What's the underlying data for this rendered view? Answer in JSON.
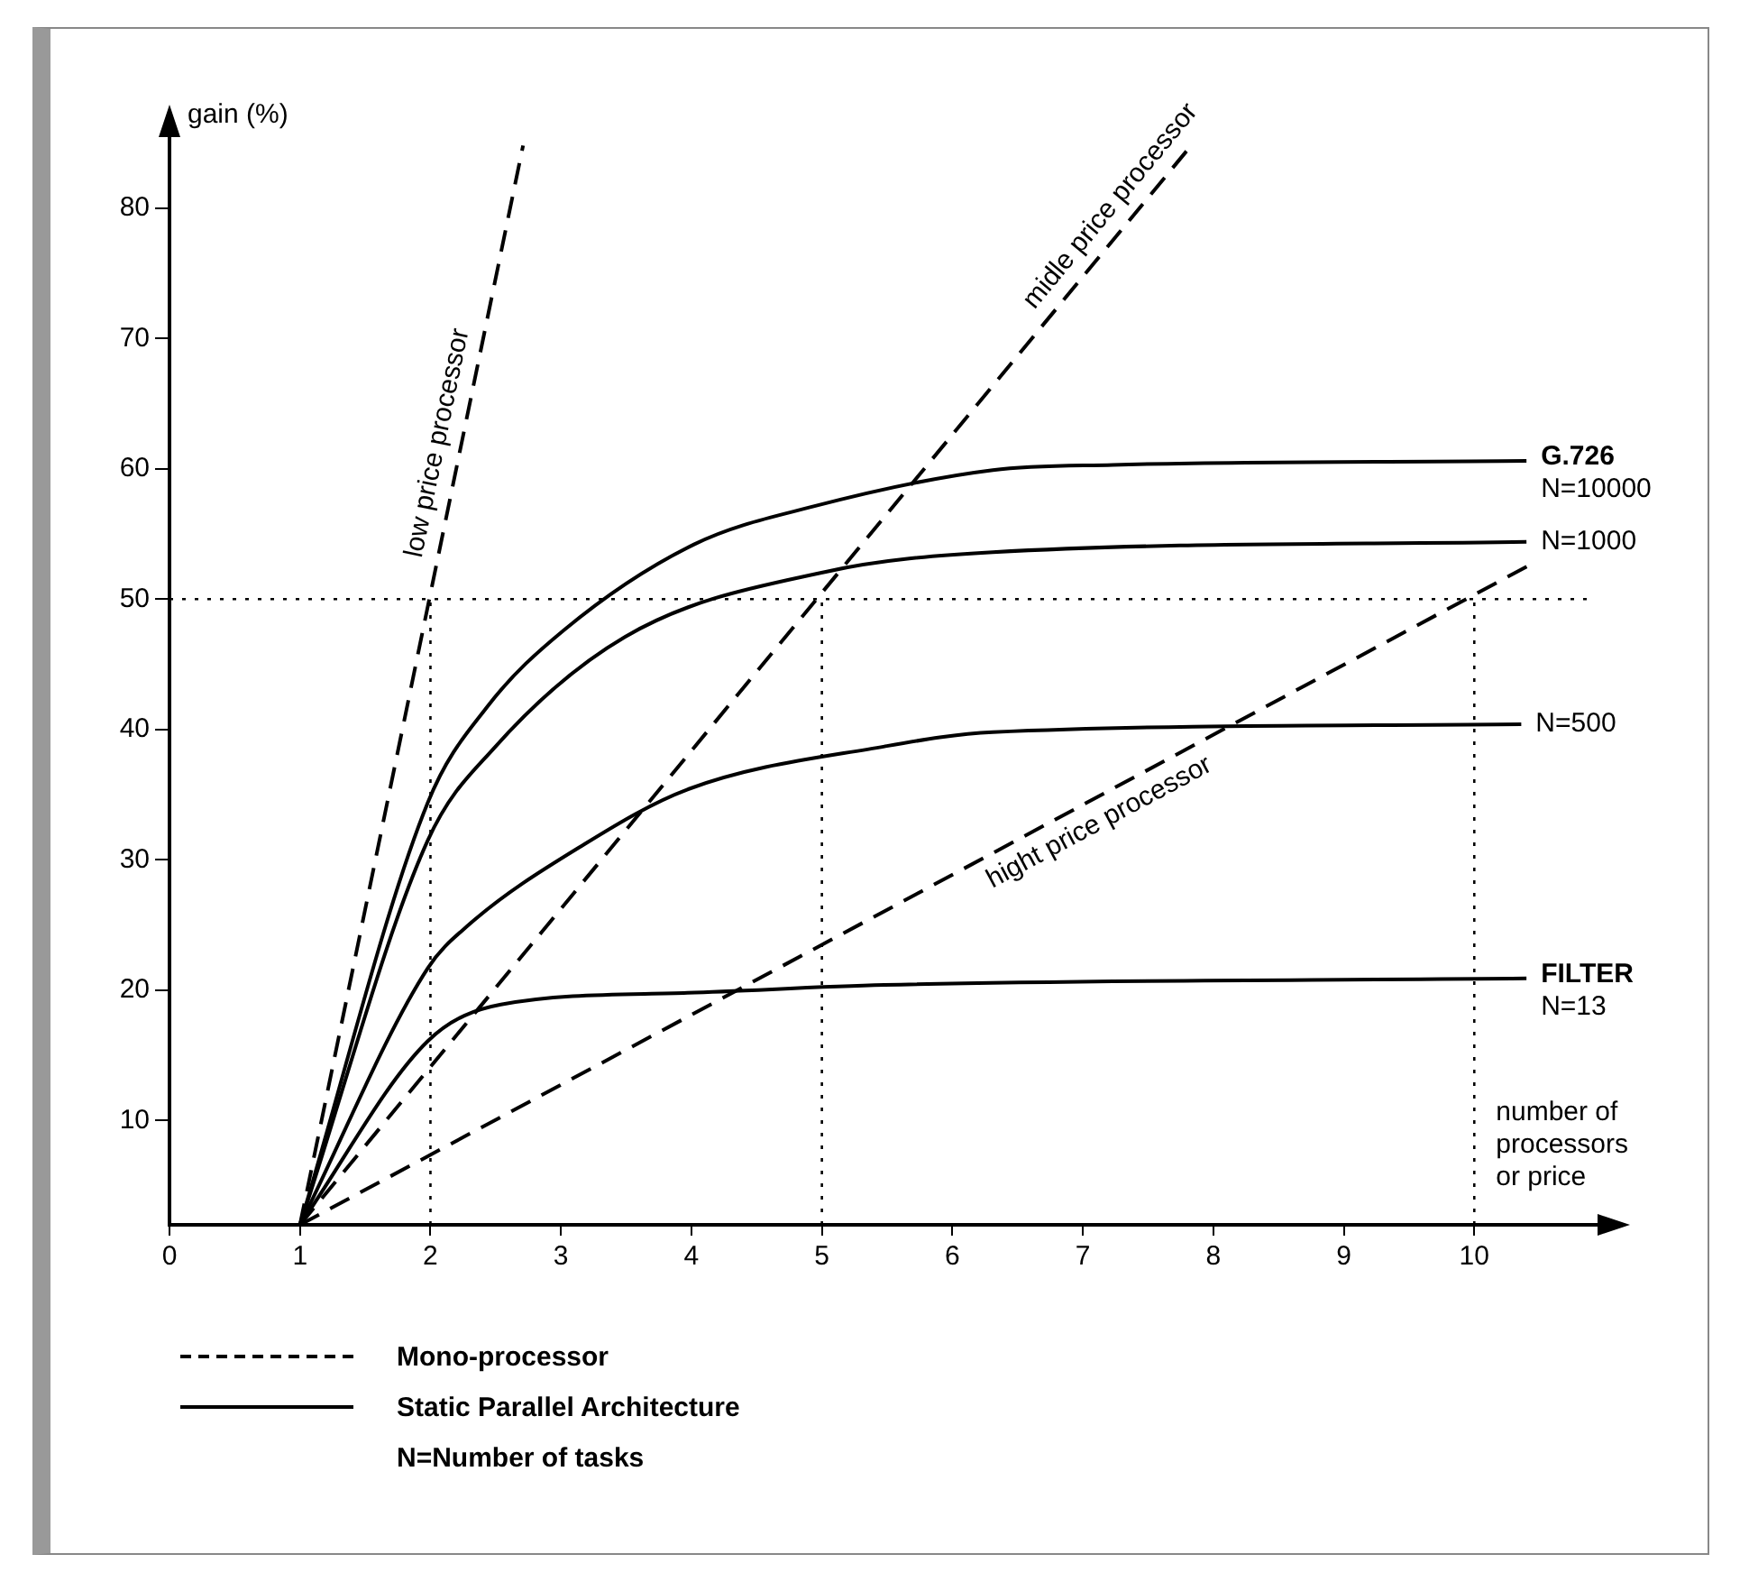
{
  "chart_data": {
    "type": "line",
    "xlabel": "number of processors or price",
    "ylabel": "gain (%)",
    "xlim": [
      0,
      11
    ],
    "xticks": [
      0,
      1,
      2,
      3,
      4,
      5,
      6,
      7,
      8,
      9,
      10
    ],
    "ylim": [
      2,
      86
    ],
    "yticks": [
      10,
      20,
      30,
      40,
      50,
      60,
      70,
      80
    ],
    "grid": false,
    "legend": false,
    "marker": "none",
    "line_style": "solid",
    "series": [
      {
        "name": "low price processor",
        "color": "#000000",
        "line_style": "dashed",
        "x": [
          1,
          2.71
        ],
        "values": [
          2,
          84.8
        ]
      },
      {
        "name": "midle price processor",
        "color": "#000000",
        "line_style": "dashed",
        "x": [
          1,
          7.83
        ],
        "values": [
          2,
          84.8
        ]
      },
      {
        "name": "hight price processor",
        "color": "#000000",
        "line_style": "dashed",
        "x": [
          1,
          10.44
        ],
        "values": [
          2,
          52.7
        ]
      },
      {
        "name": "N=10000",
        "color": "#000000",
        "x": [
          1,
          1.98,
          2.44,
          3.02,
          4.02,
          4.93,
          6.31,
          7.23,
          10.4
        ],
        "values": [
          2,
          34.4,
          41.8,
          47.6,
          54.2,
          57.1,
          59.9,
          60.3,
          60.6
        ]
      },
      {
        "name": "N=1000",
        "color": "#000000",
        "x": [
          1,
          1.98,
          2.49,
          3.49,
          5.03,
          6.31,
          10.4
        ],
        "values": [
          2,
          31.5,
          38.6,
          47.1,
          52.1,
          53.6,
          54.4
        ]
      },
      {
        "name": "N=500",
        "color": "#000000",
        "x": [
          1,
          1.98,
          2.28,
          3.18,
          3.97,
          5.48,
          6.31,
          10.36
        ],
        "values": [
          2,
          21.7,
          24.9,
          31.2,
          35.4,
          38.7,
          39.8,
          40.4
        ]
      },
      {
        "name": "N=13",
        "color": "#000000",
        "x": [
          1,
          1.98,
          2.54,
          3.97,
          5.48,
          10.4
        ],
        "values": [
          2,
          16.1,
          18.9,
          19.8,
          20.4,
          20.9
        ]
      },
      {
        "color": "#000000",
        "line_style": "dotted",
        "x": [
          0,
          10.87
        ],
        "values": [
          50,
          50
        ]
      },
      {
        "color": "#000000",
        "line_style": "dotted",
        "x": [
          2,
          2
        ],
        "values": [
          2,
          50
        ]
      },
      {
        "color": "#000000",
        "line_style": "dotted",
        "x": [
          5,
          5
        ],
        "values": [
          2,
          50
        ]
      },
      {
        "color": "#000000",
        "line_style": "dotted",
        "x": [
          10,
          10
        ],
        "values": [
          2,
          50
        ]
      }
    ],
    "annotations": [
      {
        "text": "G.726",
        "x": 10.4,
        "y": 60.6
      },
      {
        "text": "FILTER",
        "x": 10.4,
        "y": 20.9
      },
      "Mono-processor",
      "Static Parallel Architecture",
      "N=Number of tasks"
    ]
  }
}
